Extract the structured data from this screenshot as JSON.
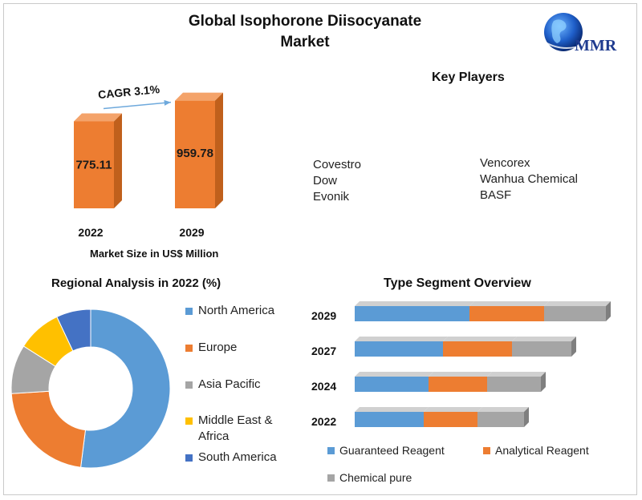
{
  "header": {
    "title_line1": "Global Isophorone  Diisocyanate",
    "title_line2": "Market",
    "logo_text": "MMR"
  },
  "colors": {
    "orange": "#ED7D31",
    "orange_dark": "#C0601C",
    "blue": "#5B9BD5",
    "gray": "#A5A5A5",
    "yellow": "#FFC000",
    "dark_blue": "#4472C4"
  },
  "chart_data": [
    {
      "type": "bar",
      "categories": [
        "2022",
        "2029"
      ],
      "values": [
        775.11,
        959.78
      ],
      "value_labels": [
        "775.11",
        "959.78"
      ],
      "annotation": "CAGR 3.1%",
      "xlabel": "Market Size in US$ Million",
      "ylim": [
        0,
        1000
      ]
    },
    {
      "type": "pie",
      "title": "Regional Analysis in 2022 (%)",
      "labels": [
        "North America",
        "Europe",
        "Asia Pacific",
        "Middle East & Africa",
        "South America"
      ],
      "values": [
        52,
        22,
        10,
        9,
        7
      ],
      "colors": [
        "#5B9BD5",
        "#ED7D31",
        "#A5A5A5",
        "#FFC000",
        "#4472C4"
      ],
      "legend": "right"
    },
    {
      "type": "bar",
      "orientation": "horizontal-stacked",
      "title": "Type Segment Overview",
      "categories": [
        "2029",
        "2027",
        "2024",
        "2022"
      ],
      "series": [
        {
          "name": "Guaranteed Reagent",
          "values": [
            143,
            110,
            92,
            86
          ]
        },
        {
          "name": "Analytical Reagent",
          "values": [
            93,
            86,
            73,
            67
          ]
        },
        {
          "name": "Chemical pure",
          "values": [
            77,
            74,
            67,
            58
          ]
        }
      ],
      "colors": [
        "#5B9BD5",
        "#ED7D31",
        "#A5A5A5"
      ],
      "legend": "bottom"
    }
  ],
  "key_players": {
    "title": "Key Players",
    "left": [
      "Covestro",
      "Dow",
      "Evonik"
    ],
    "right": [
      "Vencorex",
      "Wanhua  Chemical",
      "BASF"
    ]
  }
}
